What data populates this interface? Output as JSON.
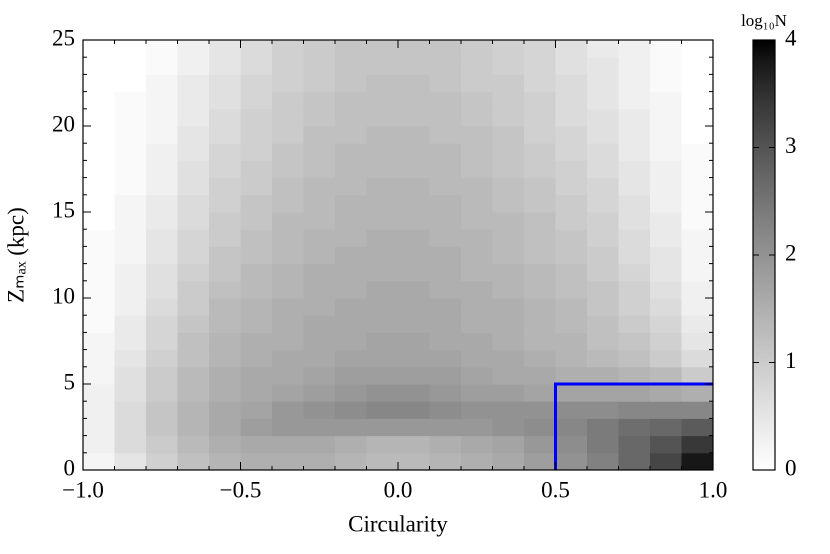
{
  "chart_data": {
    "type": "heatmap",
    "xlabel": "Circularity",
    "ylabel": "Zₘₐₓ (kpc)",
    "colorbar_label": "log₁₀N",
    "xlim": [
      -1.0,
      1.0
    ],
    "ylim": [
      0,
      25
    ],
    "xticks": [
      {
        "value": -1.0,
        "label": "−1.0"
      },
      {
        "value": -0.5,
        "label": "−0.5"
      },
      {
        "value": 0.0,
        "label": "0.0"
      },
      {
        "value": 0.5,
        "label": "0.5"
      },
      {
        "value": 1.0,
        "label": "1.0"
      }
    ],
    "yticks": [
      0,
      5,
      10,
      15,
      20,
      25
    ],
    "clim": [
      0,
      4
    ],
    "cticks": [
      0,
      1,
      2,
      3,
      4
    ],
    "colormap": "Greys",
    "x_bins": [
      -1.0,
      -0.9,
      -0.8,
      -0.7,
      -0.6,
      -0.5,
      -0.4,
      -0.3,
      -0.2,
      -0.1,
      0.0,
      0.1,
      0.2,
      0.3,
      0.4,
      0.5,
      0.6,
      0.7,
      0.8,
      0.9,
      1.0
    ],
    "y_bins": [
      0,
      1,
      2,
      3,
      4,
      5,
      6,
      7,
      8,
      9,
      10,
      11,
      12,
      13,
      14,
      15,
      16,
      17,
      18,
      19,
      20,
      21,
      22,
      23,
      24,
      25
    ],
    "values": [
      [
        0.2,
        0.5,
        0.9,
        1.2,
        1.4,
        1.5,
        1.5,
        1.5,
        1.4,
        1.3,
        1.3,
        1.4,
        1.5,
        1.6,
        1.8,
        2.0,
        2.3,
        2.7,
        3.2,
        3.8
      ],
      [
        0.3,
        0.7,
        1.0,
        1.3,
        1.5,
        1.6,
        1.6,
        1.6,
        1.5,
        1.4,
        1.4,
        1.5,
        1.6,
        1.7,
        1.9,
        2.1,
        2.4,
        2.7,
        3.0,
        3.4
      ],
      [
        0.3,
        0.7,
        1.1,
        1.4,
        1.6,
        1.8,
        1.9,
        1.9,
        1.9,
        1.9,
        1.9,
        1.9,
        1.9,
        2.0,
        2.1,
        2.2,
        2.4,
        2.6,
        2.7,
        2.9
      ],
      [
        0.3,
        0.7,
        1.1,
        1.4,
        1.6,
        1.7,
        1.9,
        2.0,
        2.1,
        2.2,
        2.2,
        2.1,
        2.0,
        2.0,
        2.0,
        2.1,
        2.1,
        2.2,
        2.2,
        2.2
      ],
      [
        0.3,
        0.6,
        1.0,
        1.3,
        1.5,
        1.6,
        1.7,
        1.8,
        1.9,
        2.0,
        2.0,
        1.9,
        1.8,
        1.8,
        1.7,
        1.7,
        1.7,
        1.7,
        1.6,
        1.5
      ],
      [
        0.2,
        0.6,
        1.0,
        1.3,
        1.5,
        1.6,
        1.6,
        1.7,
        1.8,
        1.8,
        1.8,
        1.8,
        1.7,
        1.6,
        1.6,
        1.5,
        1.5,
        1.4,
        1.3,
        1.0
      ],
      [
        0.2,
        0.5,
        0.9,
        1.2,
        1.4,
        1.5,
        1.6,
        1.6,
        1.7,
        1.7,
        1.7,
        1.7,
        1.6,
        1.6,
        1.5,
        1.4,
        1.3,
        1.2,
        1.0,
        0.7
      ],
      [
        0.2,
        0.4,
        0.8,
        1.2,
        1.4,
        1.5,
        1.5,
        1.6,
        1.6,
        1.7,
        1.7,
        1.6,
        1.6,
        1.5,
        1.4,
        1.4,
        1.2,
        1.1,
        0.9,
        0.5
      ],
      [
        0.1,
        0.4,
        0.8,
        1.1,
        1.3,
        1.4,
        1.5,
        1.6,
        1.6,
        1.6,
        1.6,
        1.6,
        1.5,
        1.5,
        1.4,
        1.3,
        1.2,
        1.0,
        0.8,
        0.4
      ],
      [
        0.1,
        0.3,
        0.7,
        1.0,
        1.3,
        1.4,
        1.5,
        1.5,
        1.6,
        1.6,
        1.6,
        1.6,
        1.5,
        1.5,
        1.4,
        1.3,
        1.1,
        0.9,
        0.7,
        0.3
      ],
      [
        0.1,
        0.3,
        0.6,
        1.0,
        1.2,
        1.3,
        1.4,
        1.5,
        1.5,
        1.6,
        1.6,
        1.5,
        1.5,
        1.4,
        1.3,
        1.2,
        1.1,
        0.9,
        0.6,
        0.3
      ],
      [
        0.1,
        0.3,
        0.6,
        0.9,
        1.1,
        1.3,
        1.4,
        1.5,
        1.5,
        1.5,
        1.5,
        1.5,
        1.4,
        1.4,
        1.3,
        1.2,
        1.0,
        0.8,
        0.5,
        0.2
      ],
      [
        0.1,
        0.2,
        0.5,
        0.8,
        1.1,
        1.2,
        1.3,
        1.4,
        1.5,
        1.5,
        1.5,
        1.5,
        1.4,
        1.3,
        1.2,
        1.1,
        1.0,
        0.7,
        0.5,
        0.2
      ],
      [
        0.1,
        0.2,
        0.5,
        0.8,
        1.0,
        1.2,
        1.3,
        1.4,
        1.4,
        1.5,
        1.5,
        1.4,
        1.4,
        1.3,
        1.2,
        1.1,
        0.9,
        0.7,
        0.4,
        0.2
      ],
      [
        0.0,
        0.2,
        0.4,
        0.7,
        1.0,
        1.1,
        1.3,
        1.3,
        1.4,
        1.4,
        1.4,
        1.4,
        1.3,
        1.3,
        1.2,
        1.0,
        0.9,
        0.6,
        0.4,
        0.1
      ],
      [
        0.0,
        0.2,
        0.4,
        0.7,
        0.9,
        1.1,
        1.2,
        1.3,
        1.4,
        1.4,
        1.4,
        1.4,
        1.3,
        1.2,
        1.1,
        1.0,
        0.8,
        0.6,
        0.3,
        0.1
      ],
      [
        0.0,
        0.1,
        0.3,
        0.6,
        0.9,
        1.0,
        1.2,
        1.3,
        1.3,
        1.4,
        1.4,
        1.3,
        1.3,
        1.2,
        1.1,
        0.9,
        0.8,
        0.5,
        0.3,
        0.1
      ],
      [
        0.0,
        0.1,
        0.3,
        0.6,
        0.8,
        1.0,
        1.1,
        1.2,
        1.3,
        1.3,
        1.3,
        1.3,
        1.2,
        1.1,
        1.0,
        0.9,
        0.7,
        0.5,
        0.3,
        0.1
      ],
      [
        0.0,
        0.1,
        0.3,
        0.5,
        0.8,
        0.9,
        1.1,
        1.2,
        1.3,
        1.3,
        1.3,
        1.3,
        1.2,
        1.1,
        1.0,
        0.8,
        0.7,
        0.4,
        0.2,
        0.1
      ],
      [
        0.0,
        0.1,
        0.2,
        0.5,
        0.7,
        0.9,
        1.0,
        1.2,
        1.2,
        1.3,
        1.3,
        1.2,
        1.2,
        1.1,
        0.9,
        0.8,
        0.6,
        0.4,
        0.2,
        0.0
      ],
      [
        0.0,
        0.1,
        0.2,
        0.4,
        0.7,
        0.9,
        1.0,
        1.1,
        1.2,
        1.2,
        1.2,
        1.2,
        1.1,
        1.0,
        0.9,
        0.7,
        0.6,
        0.4,
        0.2,
        0.0
      ],
      [
        0.0,
        0.1,
        0.2,
        0.4,
        0.6,
        0.8,
        1.0,
        1.1,
        1.2,
        1.2,
        1.2,
        1.2,
        1.1,
        1.0,
        0.9,
        0.7,
        0.5,
        0.3,
        0.2,
        0.0
      ],
      [
        0.0,
        0.0,
        0.2,
        0.4,
        0.6,
        0.8,
        0.9,
        1.0,
        1.1,
        1.2,
        1.2,
        1.1,
        1.0,
        1.0,
        0.8,
        0.7,
        0.5,
        0.3,
        0.1,
        0.0
      ],
      [
        0.0,
        0.0,
        0.1,
        0.3,
        0.5,
        0.7,
        0.9,
        1.0,
        1.1,
        1.1,
        1.1,
        1.1,
        1.0,
        0.9,
        0.8,
        0.6,
        0.5,
        0.3,
        0.1,
        0.0
      ],
      [
        0.0,
        0.0,
        0.1,
        0.3,
        0.5,
        0.7,
        0.9,
        1.0,
        1.1,
        1.1,
        1.1,
        1.1,
        1.0,
        0.9,
        0.8,
        0.6,
        0.4,
        0.3,
        0.1,
        0.0
      ]
    ],
    "region": {
      "x": [
        0.5,
        1.0
      ],
      "y": [
        0,
        5
      ],
      "color": "#0000ff"
    }
  }
}
